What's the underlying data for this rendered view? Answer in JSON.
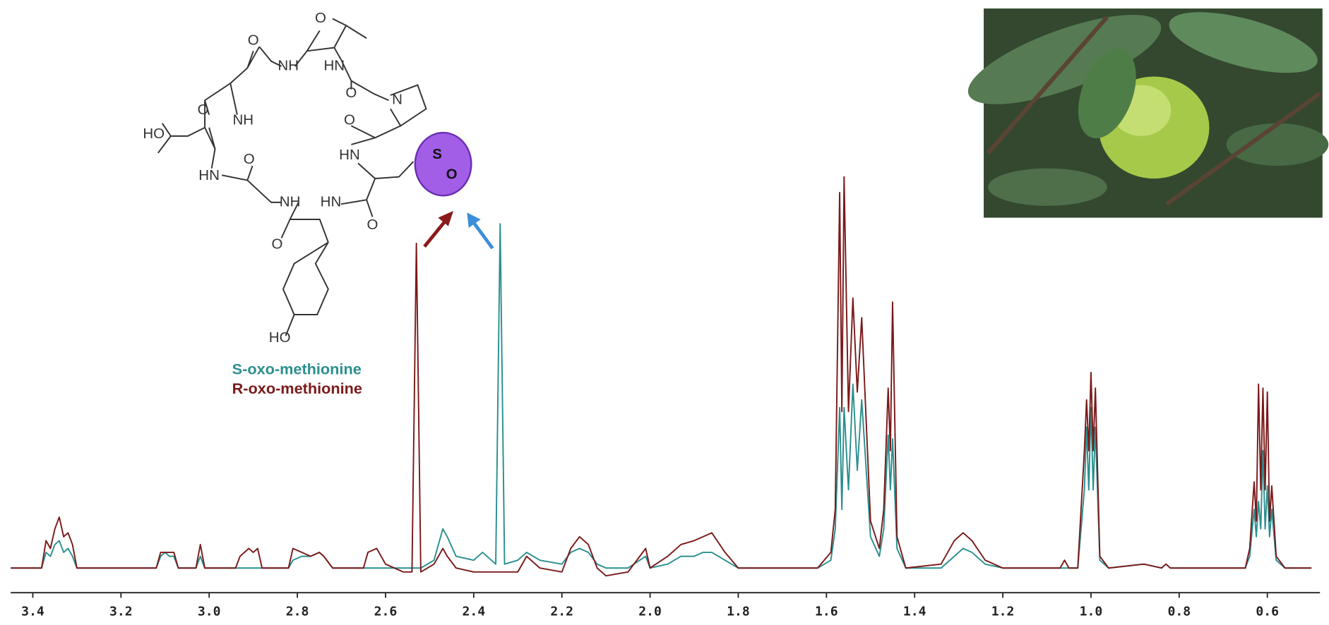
{
  "chart_data": {
    "type": "line",
    "x": [
      3.45,
      3.38,
      3.37,
      3.36,
      3.35,
      3.34,
      3.33,
      3.32,
      3.31,
      3.3,
      3.12,
      3.11,
      3.1,
      3.09,
      3.08,
      3.07,
      3.03,
      3.02,
      3.01,
      2.94,
      2.93,
      2.91,
      2.9,
      2.89,
      2.88,
      2.82,
      2.81,
      2.79,
      2.77,
      2.75,
      2.74,
      2.72,
      2.65,
      2.64,
      2.62,
      2.6,
      2.56,
      2.54,
      2.53,
      2.52,
      2.49,
      2.47,
      2.46,
      2.44,
      2.4,
      2.38,
      2.35,
      2.34,
      2.33,
      2.3,
      2.28,
      2.25,
      2.2,
      2.18,
      2.16,
      2.14,
      2.12,
      2.1,
      2.05,
      2.01,
      2.0,
      1.96,
      1.93,
      1.9,
      1.88,
      1.86,
      1.83,
      1.8,
      1.62,
      1.59,
      1.58,
      1.57,
      1.565,
      1.56,
      1.55,
      1.54,
      1.53,
      1.52,
      1.5,
      1.48,
      1.47,
      1.46,
      1.455,
      1.45,
      1.44,
      1.42,
      1.34,
      1.31,
      1.29,
      1.27,
      1.24,
      1.2,
      1.07,
      1.06,
      1.05,
      1.03,
      1.015,
      1.01,
      1.005,
      1.0,
      0.995,
      0.99,
      0.98,
      0.96,
      0.88,
      0.84,
      0.83,
      0.82,
      0.65,
      0.64,
      0.63,
      0.625,
      0.62,
      0.615,
      0.61,
      0.605,
      0.6,
      0.595,
      0.59,
      0.58,
      0.56,
      0.5
    ],
    "series": [
      {
        "name": "S-oxo-methionine",
        "color": "#2b8f8f",
        "values": [
          0,
          0,
          4,
          3,
          6,
          7,
          4,
          5,
          3,
          0,
          0,
          3,
          4,
          3,
          3,
          0,
          0,
          3,
          0,
          0,
          0,
          0,
          0,
          0,
          0,
          0,
          2,
          3,
          3,
          4,
          3,
          0,
          0,
          0,
          0,
          0,
          0,
          0,
          0,
          0,
          2,
          10,
          8,
          3,
          2,
          4,
          1,
          88,
          1,
          2,
          4,
          2,
          1,
          4,
          5,
          4,
          1,
          0,
          0,
          3,
          0,
          1,
          3,
          3,
          4,
          4,
          2,
          0,
          0,
          2,
          10,
          41,
          15,
          41,
          20,
          47,
          25,
          43,
          8,
          3,
          10,
          34,
          20,
          33,
          5,
          0,
          0,
          3,
          5,
          4,
          1,
          0,
          0,
          0,
          0,
          0,
          20,
          36,
          20,
          41,
          20,
          36,
          2,
          0,
          1,
          0,
          1,
          0,
          0,
          3,
          15,
          8,
          17,
          10,
          30,
          10,
          21,
          8,
          15,
          2,
          0,
          0
        ]
      },
      {
        "name": "R-oxo-methionine",
        "color": "#7b1a1a",
        "values": [
          0,
          0,
          7,
          5,
          10,
          13,
          8,
          9,
          6,
          0,
          0,
          4,
          4,
          4,
          4,
          0,
          0,
          6,
          0,
          0,
          3,
          5,
          4,
          5,
          0,
          0,
          5,
          4,
          3,
          4,
          3,
          0,
          0,
          4,
          5,
          1,
          -1,
          -1,
          83,
          -1,
          1,
          5,
          3,
          0,
          -1,
          -1,
          -1,
          -1,
          -1,
          -1,
          3,
          0,
          -1,
          5,
          8,
          6,
          0,
          -2,
          -1,
          5,
          0,
          3,
          6,
          7,
          8,
          9,
          4,
          0,
          0,
          4,
          15,
          96,
          40,
          100,
          40,
          69,
          45,
          64,
          12,
          5,
          15,
          46,
          30,
          68,
          8,
          0,
          1,
          7,
          9,
          7,
          2,
          0,
          0,
          2,
          0,
          0,
          30,
          43,
          30,
          50,
          30,
          46,
          3,
          0,
          1,
          0,
          1,
          0,
          0,
          5,
          22,
          12,
          47,
          20,
          46,
          20,
          45,
          12,
          21,
          3,
          0,
          0
        ]
      }
    ],
    "xlim": [
      3.45,
      0.5
    ],
    "ylim": [
      -5,
      100
    ],
    "xticks": [
      3.4,
      3.2,
      {
        "value": 3.0,
        "label": "3.0"
      },
      2.8,
      2.6,
      2.4,
      2.2,
      {
        "value": 2.0,
        "label": "2.0"
      },
      1.8,
      1.6,
      1.4,
      1.2,
      {
        "value": 1.0,
        "label": "1.0"
      },
      0.8,
      0.6
    ]
  },
  "structure": {
    "labels": [
      "O",
      "O",
      "NH",
      "HN",
      "O",
      "N",
      "O",
      "NH",
      "HO",
      "O",
      "HN",
      "HN",
      "O",
      "NH",
      "HN",
      "O",
      "O",
      "HO",
      "S",
      "O"
    ]
  }
}
